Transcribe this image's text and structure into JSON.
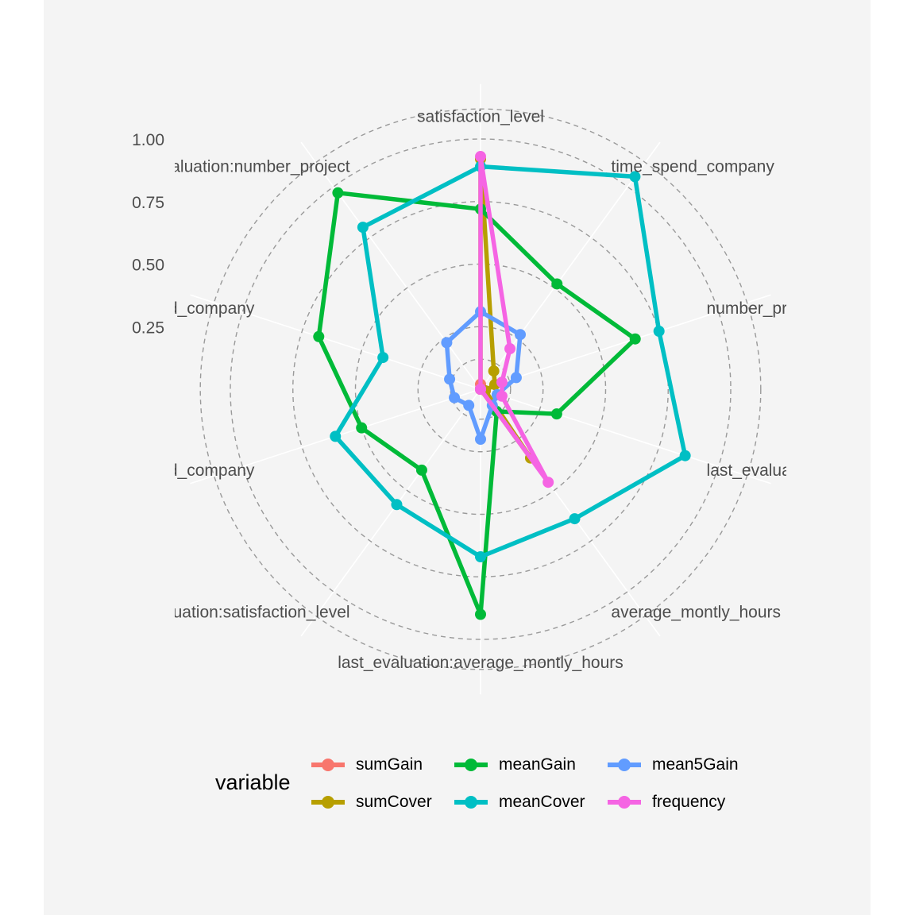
{
  "chart_data": {
    "type": "radar",
    "axes": [
      "satisfaction_level",
      "time_spend_company",
      "number_project",
      "last_evaluation",
      "average_montly_hours",
      "last_evaluation:average_montly_hours",
      "last_evaluation:satisfaction_level",
      "last_evaluation:time_spend_company",
      "satisfaction_level:time_spend_company",
      "last_evaluation:number_project"
    ],
    "axes_display": [
      "satisfaction_level",
      "time_spend_company",
      "number_pro",
      "last_evaluation",
      "average_montly_hours",
      "last_evaluation:average_montly_hours",
      "valuation:satisfaction_level",
      ":time_spend_company",
      "on_level:time_spend_company",
      "last_evaluation:number_project"
    ],
    "rlim": [
      0,
      1
    ],
    "rticks": [
      0.25,
      0.5,
      0.75,
      1.0
    ],
    "rtick_labels": [
      "0.25",
      "0.50",
      "0.75",
      "1.00"
    ],
    "grid": true,
    "legend_position": "bottom",
    "legend_title": "variable",
    "series": [
      {
        "name": "sumGain",
        "color": "#F8766D",
        "values": [
          0.02,
          0.0,
          0.0,
          0.02,
          0.0,
          0.0,
          0.0,
          0.0,
          0.0,
          0.0
        ]
      },
      {
        "name": "sumCover",
        "color": "#B79F00",
        "values": [
          0.92,
          0.09,
          0.06,
          0.02,
          0.34,
          0.0,
          0.0,
          0.0,
          0.0,
          0.0
        ]
      },
      {
        "name": "meanGain",
        "color": "#00BA38",
        "values": [
          0.72,
          0.52,
          0.65,
          0.32,
          0.11,
          0.9,
          0.4,
          0.5,
          0.68,
          0.97
        ]
      },
      {
        "name": "meanCover",
        "color": "#00BFC4",
        "values": [
          0.89,
          1.05,
          0.75,
          0.86,
          0.64,
          0.67,
          0.57,
          0.61,
          0.41,
          0.8
        ]
      },
      {
        "name": "mean5Gain",
        "color": "#619CFF",
        "values": [
          0.31,
          0.27,
          0.15,
          0.07,
          0.08,
          0.2,
          0.08,
          0.11,
          0.13,
          0.23
        ]
      },
      {
        "name": "frequency",
        "color": "#F564E3",
        "values": [
          0.93,
          0.2,
          0.09,
          0.09,
          0.46,
          0.0,
          0.0,
          0.0,
          0.0,
          0.0
        ]
      }
    ]
  }
}
